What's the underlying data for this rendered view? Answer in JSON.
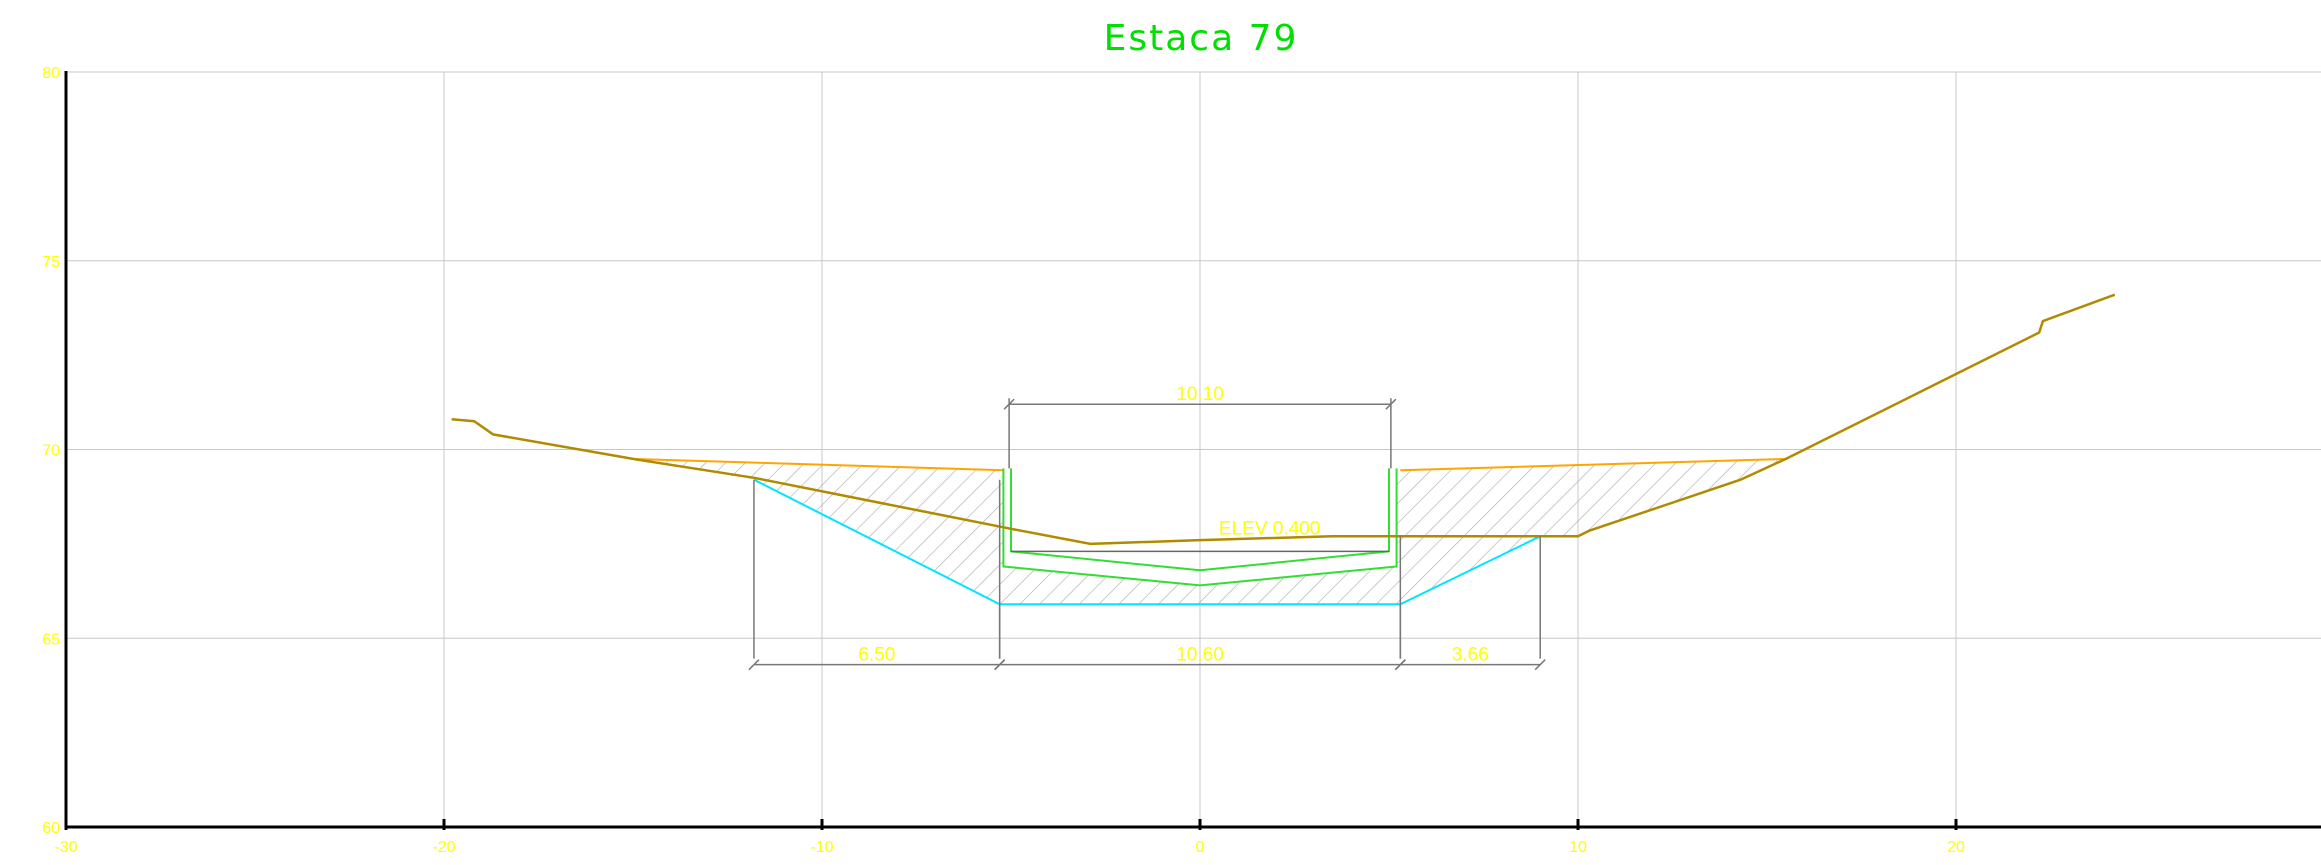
{
  "title": "Estaca 79",
  "colors": {
    "title": "#00e000",
    "labels": "#ffff00",
    "terrain": "#b08a00",
    "cut_top": "#ffa500",
    "cut_bottom": "#00e5ff",
    "structure": "#33dd33",
    "hatch": "#aaaaaa",
    "dimension_lines": "#777777",
    "grid": "#c8c8c8"
  },
  "annotation": "ELEV 0.400",
  "chart_data": {
    "type": "cross-section",
    "title": "Estaca 79",
    "xlim": [
      -30,
      30
    ],
    "ylim": [
      60,
      80
    ],
    "x_ticks": [
      "-30",
      "-20",
      "-10",
      "0",
      "10",
      "20"
    ],
    "y_ticks": [
      "60",
      "65",
      "70",
      "75",
      "80"
    ],
    "grid": true,
    "terrain_profile": [
      [
        -19.8,
        70.8
      ],
      [
        -19.2,
        70.75
      ],
      [
        -18.7,
        70.4
      ],
      [
        -15,
        69.75
      ],
      [
        -11.8,
        69.25
      ],
      [
        -5,
        67.9
      ],
      [
        -2.9,
        67.5
      ],
      [
        0,
        67.6
      ],
      [
        3.5,
        67.7
      ],
      [
        8.8,
        67.7
      ],
      [
        10,
        67.7
      ],
      [
        10.3,
        67.85
      ],
      [
        14.3,
        69.2
      ],
      [
        15.5,
        69.75
      ],
      [
        22.2,
        73.1
      ],
      [
        22.3,
        73.4
      ],
      [
        24.2,
        74.1
      ]
    ],
    "cut_outline_top": [
      [
        -15,
        69.75
      ],
      [
        -5.2,
        69.45
      ],
      [
        5.3,
        69.45
      ],
      [
        15.5,
        69.75
      ]
    ],
    "cut_outline_bottom": [
      [
        -11.8,
        69.2
      ],
      [
        -5.3,
        65.9
      ],
      [
        5.3,
        65.9
      ],
      [
        9.0,
        67.7
      ]
    ],
    "structure_outer": [
      [
        -5.2,
        69.5
      ],
      [
        -5.2,
        66.9
      ],
      [
        0,
        66.4
      ],
      [
        5.2,
        66.9
      ],
      [
        5.2,
        69.5
      ]
    ],
    "structure_inner": [
      [
        -5.0,
        69.5
      ],
      [
        -5.0,
        67.3
      ],
      [
        0,
        66.8
      ],
      [
        5.0,
        67.3
      ],
      [
        5.0,
        69.5
      ]
    ],
    "structure_top_line": [
      [
        -5.0,
        67.3
      ],
      [
        5.0,
        67.3
      ]
    ],
    "dimensions": [
      {
        "label": "10.10",
        "from": -5.05,
        "to": 5.05,
        "y": 71.2,
        "ext_to": 69.5
      },
      {
        "label": "6.50",
        "from": -11.8,
        "to": -5.3,
        "y": 64.3,
        "ext_to": 69.2
      },
      {
        "label": "10.60",
        "from": -5.3,
        "to": 5.3,
        "y": 64.3,
        "ext_to": 65.9
      },
      {
        "label": "3.66",
        "from": 5.3,
        "to": 9.0,
        "y": 64.3,
        "ext_to": 67.7
      }
    ]
  }
}
